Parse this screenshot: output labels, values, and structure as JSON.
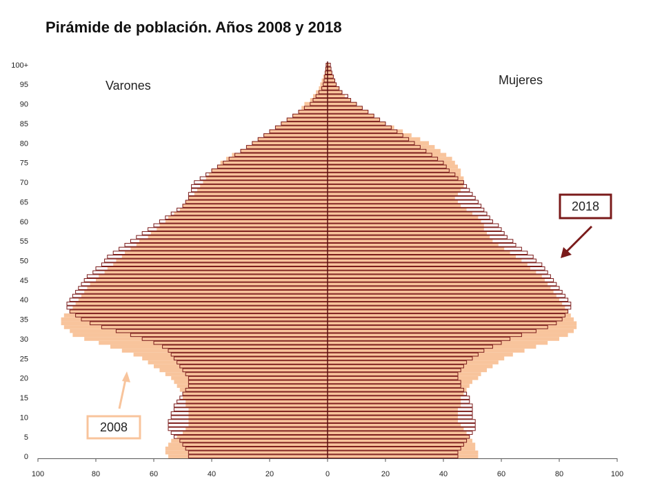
{
  "chart_data": {
    "type": "bar",
    "orientation": "horizontal",
    "title": "Pirámide de población. Años 2008 y 2018",
    "xlabel": "",
    "ylabel": "",
    "xlim": [
      -100,
      100
    ],
    "x_tick_values": [
      -100,
      -80,
      -60,
      -40,
      -20,
      0,
      20,
      40,
      60,
      80,
      100
    ],
    "x_tick_labels": [
      "100",
      "80",
      "60",
      "40",
      "20",
      "0",
      "20",
      "40",
      "60",
      "80",
      "100"
    ],
    "y_tick_values": [
      0,
      5,
      10,
      15,
      20,
      25,
      30,
      35,
      40,
      45,
      50,
      55,
      60,
      65,
      70,
      75,
      80,
      85,
      90,
      95,
      100
    ],
    "y_tick_labels": [
      "0",
      "5",
      "10",
      "15",
      "20",
      "25",
      "30",
      "35",
      "40",
      "45",
      "50",
      "55",
      "60",
      "65",
      "70",
      "75",
      "80",
      "85",
      "90",
      "95",
      "100+"
    ],
    "side_labels": {
      "left": "Varones",
      "right": "Mujeres"
    },
    "ages": [
      0,
      1,
      2,
      3,
      4,
      5,
      6,
      7,
      8,
      9,
      10,
      11,
      12,
      13,
      14,
      15,
      16,
      17,
      18,
      19,
      20,
      21,
      22,
      23,
      24,
      25,
      26,
      27,
      28,
      29,
      30,
      31,
      32,
      33,
      34,
      35,
      36,
      37,
      38,
      39,
      40,
      41,
      42,
      43,
      44,
      45,
      46,
      47,
      48,
      49,
      50,
      51,
      52,
      53,
      54,
      55,
      56,
      57,
      58,
      59,
      60,
      61,
      62,
      63,
      64,
      65,
      66,
      67,
      68,
      69,
      70,
      71,
      72,
      73,
      74,
      75,
      76,
      77,
      78,
      79,
      80,
      81,
      82,
      83,
      84,
      85,
      86,
      87,
      88,
      89,
      90,
      91,
      92,
      93,
      94,
      95,
      96,
      97,
      98,
      99,
      100
    ],
    "series": [
      {
        "name": "2008",
        "color": "#f8c49c",
        "style": "filled",
        "men": [
          55,
          56,
          56,
          55,
          54,
          52,
          50,
          49,
          48,
          48,
          48,
          48,
          48,
          49,
          49,
          50,
          50,
          51,
          52,
          53,
          54,
          56,
          58,
          60,
          62,
          64,
          67,
          71,
          75,
          79,
          84,
          88,
          89,
          91,
          92,
          92,
          91,
          89,
          88,
          87,
          86,
          85,
          84,
          83,
          82,
          80,
          79,
          77,
          76,
          74,
          73,
          71,
          70,
          68,
          66,
          65,
          62,
          61,
          59,
          58,
          56,
          55,
          53,
          51,
          50,
          49,
          48,
          46,
          45,
          44,
          43,
          42,
          41,
          40,
          38,
          37,
          35,
          33,
          30,
          28,
          26,
          24,
          22,
          20,
          18,
          16,
          14,
          12,
          10,
          9,
          8,
          6,
          5,
          4,
          3,
          2.5,
          2,
          1.5,
          1,
          0.8,
          0.5
        ],
        "women": [
          52,
          52,
          51,
          51,
          50,
          49,
          48,
          47,
          46,
          45,
          45,
          45,
          45,
          46,
          46,
          46,
          47,
          48,
          49,
          50,
          52,
          53,
          55,
          57,
          59,
          61,
          64,
          68,
          72,
          76,
          80,
          83,
          85,
          86,
          86,
          85,
          84,
          83,
          82,
          81,
          80,
          79,
          78,
          77,
          76,
          75,
          74,
          72,
          70,
          69,
          67,
          65,
          63,
          61,
          59,
          57,
          56,
          55,
          54,
          54,
          53,
          52,
          50,
          48,
          46,
          45,
          44,
          45,
          46,
          47,
          47,
          47,
          46,
          46,
          45,
          44,
          43,
          41,
          39,
          37,
          35,
          32,
          29,
          26,
          23,
          20,
          18,
          16,
          14,
          12,
          10,
          8,
          6,
          5,
          4,
          3,
          2.5,
          2,
          1.5,
          1,
          0.7
        ]
      },
      {
        "name": "2018",
        "color": "#7a1a1a",
        "style": "outline",
        "men": [
          48,
          48,
          49,
          50,
          51,
          53,
          54,
          55,
          55,
          55,
          54,
          54,
          53,
          53,
          52,
          51,
          50,
          49,
          48,
          48,
          48,
          49,
          50,
          51,
          52,
          53,
          54,
          55,
          57,
          60,
          64,
          68,
          73,
          78,
          82,
          85,
          87,
          89,
          90,
          90,
          89,
          88,
          87,
          86,
          85,
          84,
          83,
          81,
          80,
          78,
          77,
          76,
          74,
          72,
          70,
          68,
          66,
          64,
          62,
          60,
          58,
          56,
          54,
          52,
          50,
          49,
          48,
          48,
          47,
          47,
          46,
          44,
          42,
          40,
          38,
          36,
          34,
          32,
          30,
          28,
          26,
          24,
          22,
          20,
          18,
          16,
          14,
          12,
          10,
          8,
          6,
          5,
          4,
          3,
          2,
          1.5,
          1.2,
          1,
          0.8,
          0.6,
          0.5
        ],
        "women": [
          45,
          45,
          46,
          47,
          48,
          49,
          50,
          51,
          51,
          51,
          50,
          50,
          50,
          50,
          49,
          49,
          48,
          47,
          46,
          46,
          45,
          45,
          46,
          47,
          48,
          50,
          52,
          54,
          57,
          60,
          63,
          67,
          72,
          76,
          79,
          81,
          82,
          83,
          84,
          84,
          83,
          82,
          81,
          80,
          79,
          78,
          77,
          76,
          75,
          74,
          72,
          71,
          69,
          67,
          65,
          64,
          62,
          61,
          60,
          59,
          57,
          56,
          55,
          54,
          53,
          52,
          51,
          50,
          49,
          48,
          47,
          45,
          44,
          42,
          41,
          40,
          38,
          36,
          34,
          32,
          30,
          28,
          26,
          24,
          22,
          20,
          18,
          16,
          14,
          12,
          10,
          8,
          7,
          5,
          4,
          3,
          2.5,
          2,
          1.5,
          1.2,
          1
        ]
      }
    ],
    "annotations": [
      {
        "text": "2018",
        "color": "#7a1a1a"
      },
      {
        "text": "2008",
        "color": "#f8c49c"
      }
    ]
  }
}
